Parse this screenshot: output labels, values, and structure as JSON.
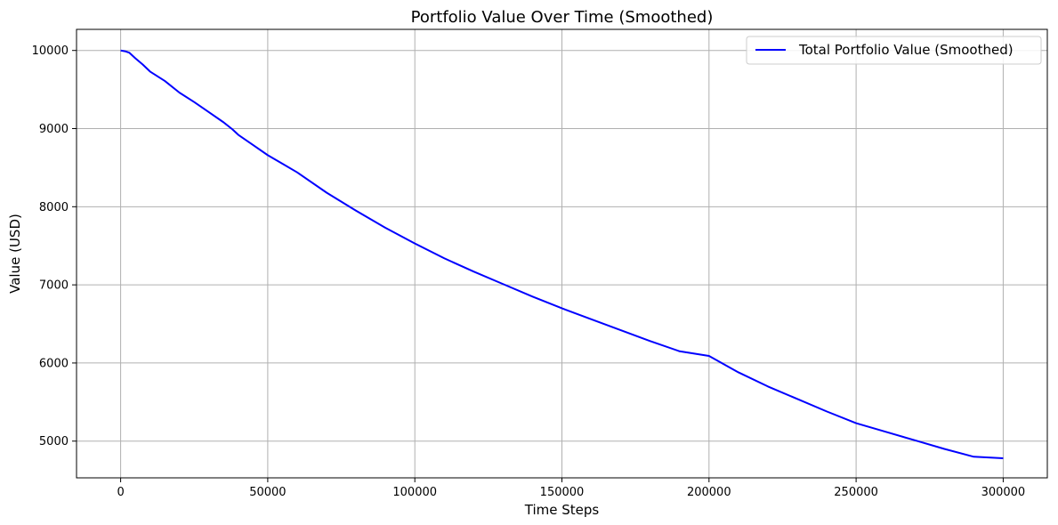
{
  "chart_data": {
    "type": "line",
    "title": "Portfolio Value Over Time (Smoothed)",
    "xlabel": "Time Steps",
    "ylabel": "Value (USD)",
    "xlim": [
      -15000,
      315000
    ],
    "ylim": [
      4530,
      10270
    ],
    "xticks": [
      0,
      50000,
      100000,
      150000,
      200000,
      250000,
      300000
    ],
    "xtick_labels": [
      "0",
      "50000",
      "100000",
      "150000",
      "200000",
      "250000",
      "300000"
    ],
    "yticks": [
      5000,
      6000,
      7000,
      8000,
      9000,
      10000
    ],
    "ytick_labels": [
      "5000",
      "6000",
      "7000",
      "8000",
      "9000",
      "10000"
    ],
    "grid": true,
    "legend_position": "top-right",
    "series": [
      {
        "name": "Total Portfolio Value (Smoothed)",
        "color": "#0000ff",
        "x": [
          0,
          1500,
          3000,
          5000,
          7500,
          10000,
          15000,
          20000,
          25000,
          30000,
          35000,
          38000,
          40000,
          45000,
          50000,
          55000,
          60000,
          70000,
          80000,
          90000,
          100000,
          110000,
          120000,
          130000,
          140000,
          150000,
          160000,
          170000,
          180000,
          190000,
          200000,
          210000,
          220000,
          230000,
          240000,
          250000,
          260000,
          270000,
          280000,
          290000,
          300000
        ],
        "y": [
          10000,
          9990,
          9970,
          9900,
          9820,
          9730,
          9610,
          9460,
          9340,
          9210,
          9080,
          8990,
          8920,
          8790,
          8660,
          8550,
          8440,
          8180,
          7950,
          7730,
          7530,
          7340,
          7170,
          7010,
          6850,
          6700,
          6560,
          6420,
          6280,
          6150,
          6090,
          5880,
          5700,
          5540,
          5380,
          5230,
          5120,
          5010,
          4900,
          4800,
          4780
        ]
      }
    ]
  }
}
